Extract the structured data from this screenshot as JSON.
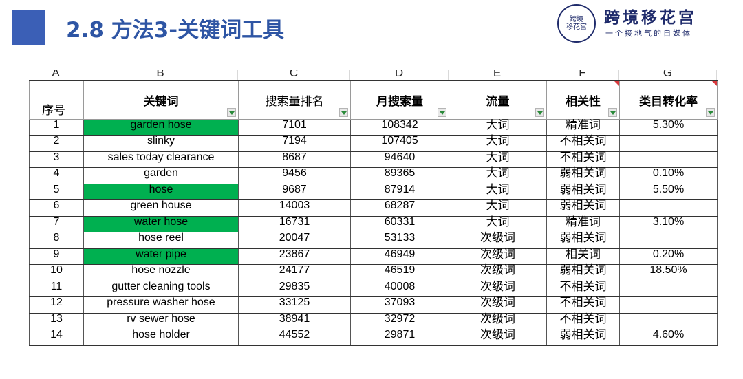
{
  "header": {
    "title": "2.8 方法3-关键词工具",
    "brand": "跨境移花宫",
    "slogan": "一个接地气的自媒体",
    "seal_line1": "跨境",
    "seal_line2": "移花宫"
  },
  "sheet": {
    "column_letters": [
      "A",
      "B",
      "C",
      "D",
      "E",
      "F",
      "G"
    ],
    "headers": [
      "序号",
      "关键词",
      "搜索量排名",
      "月搜索量",
      "流量",
      "相关性",
      "类目转化率"
    ],
    "highlight_color": "#00b050",
    "rows": [
      {
        "id": "1",
        "keyword": "garden hose",
        "rank": "7101",
        "monthly": "108342",
        "traffic": "大词",
        "relevance": "精准词",
        "conversion": "5.30%",
        "highlight": true
      },
      {
        "id": "2",
        "keyword": "slinky",
        "rank": "7194",
        "monthly": "107405",
        "traffic": "大词",
        "relevance": "不相关词",
        "conversion": "",
        "highlight": false
      },
      {
        "id": "3",
        "keyword": "sales today clearance",
        "rank": "8687",
        "monthly": "94640",
        "traffic": "大词",
        "relevance": "不相关词",
        "conversion": "",
        "highlight": false
      },
      {
        "id": "4",
        "keyword": "garden",
        "rank": "9456",
        "monthly": "89365",
        "traffic": "大词",
        "relevance": "弱相关词",
        "conversion": "0.10%",
        "highlight": false
      },
      {
        "id": "5",
        "keyword": "hose",
        "rank": "9687",
        "monthly": "87914",
        "traffic": "大词",
        "relevance": "弱相关词",
        "conversion": "5.50%",
        "highlight": true
      },
      {
        "id": "6",
        "keyword": "green house",
        "rank": "14003",
        "monthly": "68287",
        "traffic": "大词",
        "relevance": "弱相关词",
        "conversion": "",
        "highlight": false
      },
      {
        "id": "7",
        "keyword": "water hose",
        "rank": "16731",
        "monthly": "60331",
        "traffic": "大词",
        "relevance": "精准词",
        "conversion": "3.10%",
        "highlight": true
      },
      {
        "id": "8",
        "keyword": "hose reel",
        "rank": "20047",
        "monthly": "53133",
        "traffic": "次级词",
        "relevance": "弱相关词",
        "conversion": "",
        "highlight": false
      },
      {
        "id": "9",
        "keyword": "water pipe",
        "rank": "23867",
        "monthly": "46949",
        "traffic": "次级词",
        "relevance": "相关词",
        "conversion": "0.20%",
        "highlight": true
      },
      {
        "id": "10",
        "keyword": "hose nozzle",
        "rank": "24177",
        "monthly": "46519",
        "traffic": "次级词",
        "relevance": "弱相关词",
        "conversion": "18.50%",
        "highlight": false
      },
      {
        "id": "11",
        "keyword": "gutter cleaning tools",
        "rank": "29835",
        "monthly": "40008",
        "traffic": "次级词",
        "relevance": "不相关词",
        "conversion": "",
        "highlight": false
      },
      {
        "id": "12",
        "keyword": "pressure washer hose",
        "rank": "33125",
        "monthly": "37093",
        "traffic": "次级词",
        "relevance": "不相关词",
        "conversion": "",
        "highlight": false
      },
      {
        "id": "13",
        "keyword": "rv sewer hose",
        "rank": "38941",
        "monthly": "32972",
        "traffic": "次级词",
        "relevance": "不相关词",
        "conversion": "",
        "highlight": false
      },
      {
        "id": "14",
        "keyword": "hose holder",
        "rank": "44552",
        "monthly": "29871",
        "traffic": "次级词",
        "relevance": "弱相关词",
        "conversion": "4.60%",
        "highlight": false
      }
    ]
  }
}
